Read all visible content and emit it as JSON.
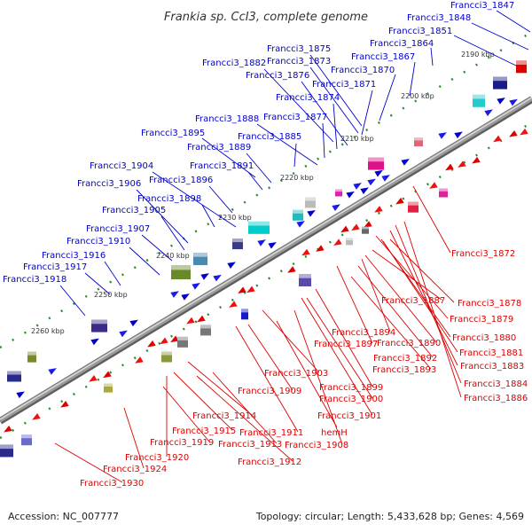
{
  "title": "Frankia sp. CcI3, complete genome",
  "footer": {
    "accession": "Accession: NC_007777",
    "stats": "Topology: circular; Length: 5,433,628 bp; Genes: 4,569"
  },
  "colors": {
    "forward_label": "#0000cc",
    "reverse_label": "#dd0000",
    "backbone": "#8c8c8c",
    "tick": "#2e8b2e"
  },
  "ticks": [
    "2190 kbp",
    "2200 kbp",
    "2210 kbp",
    "2220 kbp",
    "2230 kbp",
    "2240 kbp",
    "2250 kbp",
    "2260 kbp"
  ],
  "forward_labels": [
    "Francci3_1847",
    "Francci3_1848",
    "Francci3_1851",
    "Francci3_1864",
    "Francci3_1867",
    "Francci3_1875",
    "Francci3_1873",
    "Francci3_1882",
    "Francci3_1870",
    "Francci3_1876",
    "Francci3_1871",
    "Francci3_1874",
    "Francci3_1888",
    "Francci3_1877",
    "Francci3_1895",
    "Francci3_1885",
    "Francci3_1889",
    "Francci3_1891",
    "Francci3_1904",
    "Francci3_1896",
    "Francci3_1906",
    "Francci3_1898",
    "Francci3_1905",
    "Francci3_1907",
    "Francci3_1910",
    "Francci3_1916",
    "Francci3_1917",
    "Francci3_1918"
  ],
  "reverse_labels": [
    "Francci3_1872",
    "Francci3_1878",
    "Francci3_1887",
    "Francci3_1879",
    "Francci3_1894",
    "Francci3_1880",
    "Francci3_1897",
    "Francci3_1890",
    "Francci3_1881",
    "Francci3_1892",
    "Francci3_1883",
    "Francci3_1893",
    "Francci3_1903",
    "Francci3_1884",
    "Francci3_1899",
    "Francci3_1909",
    "Francci3_1900",
    "Francci3_1886",
    "Francci3_1901",
    "Francci3_1914",
    "Francci3_1911",
    "hemH",
    "Francci3_1915",
    "Francci3_1919",
    "Francci3_1913",
    "Francci3_1908",
    "Francci3_1920",
    "Francci3_1912",
    "Francci3_1924",
    "Francci3_1930"
  ]
}
